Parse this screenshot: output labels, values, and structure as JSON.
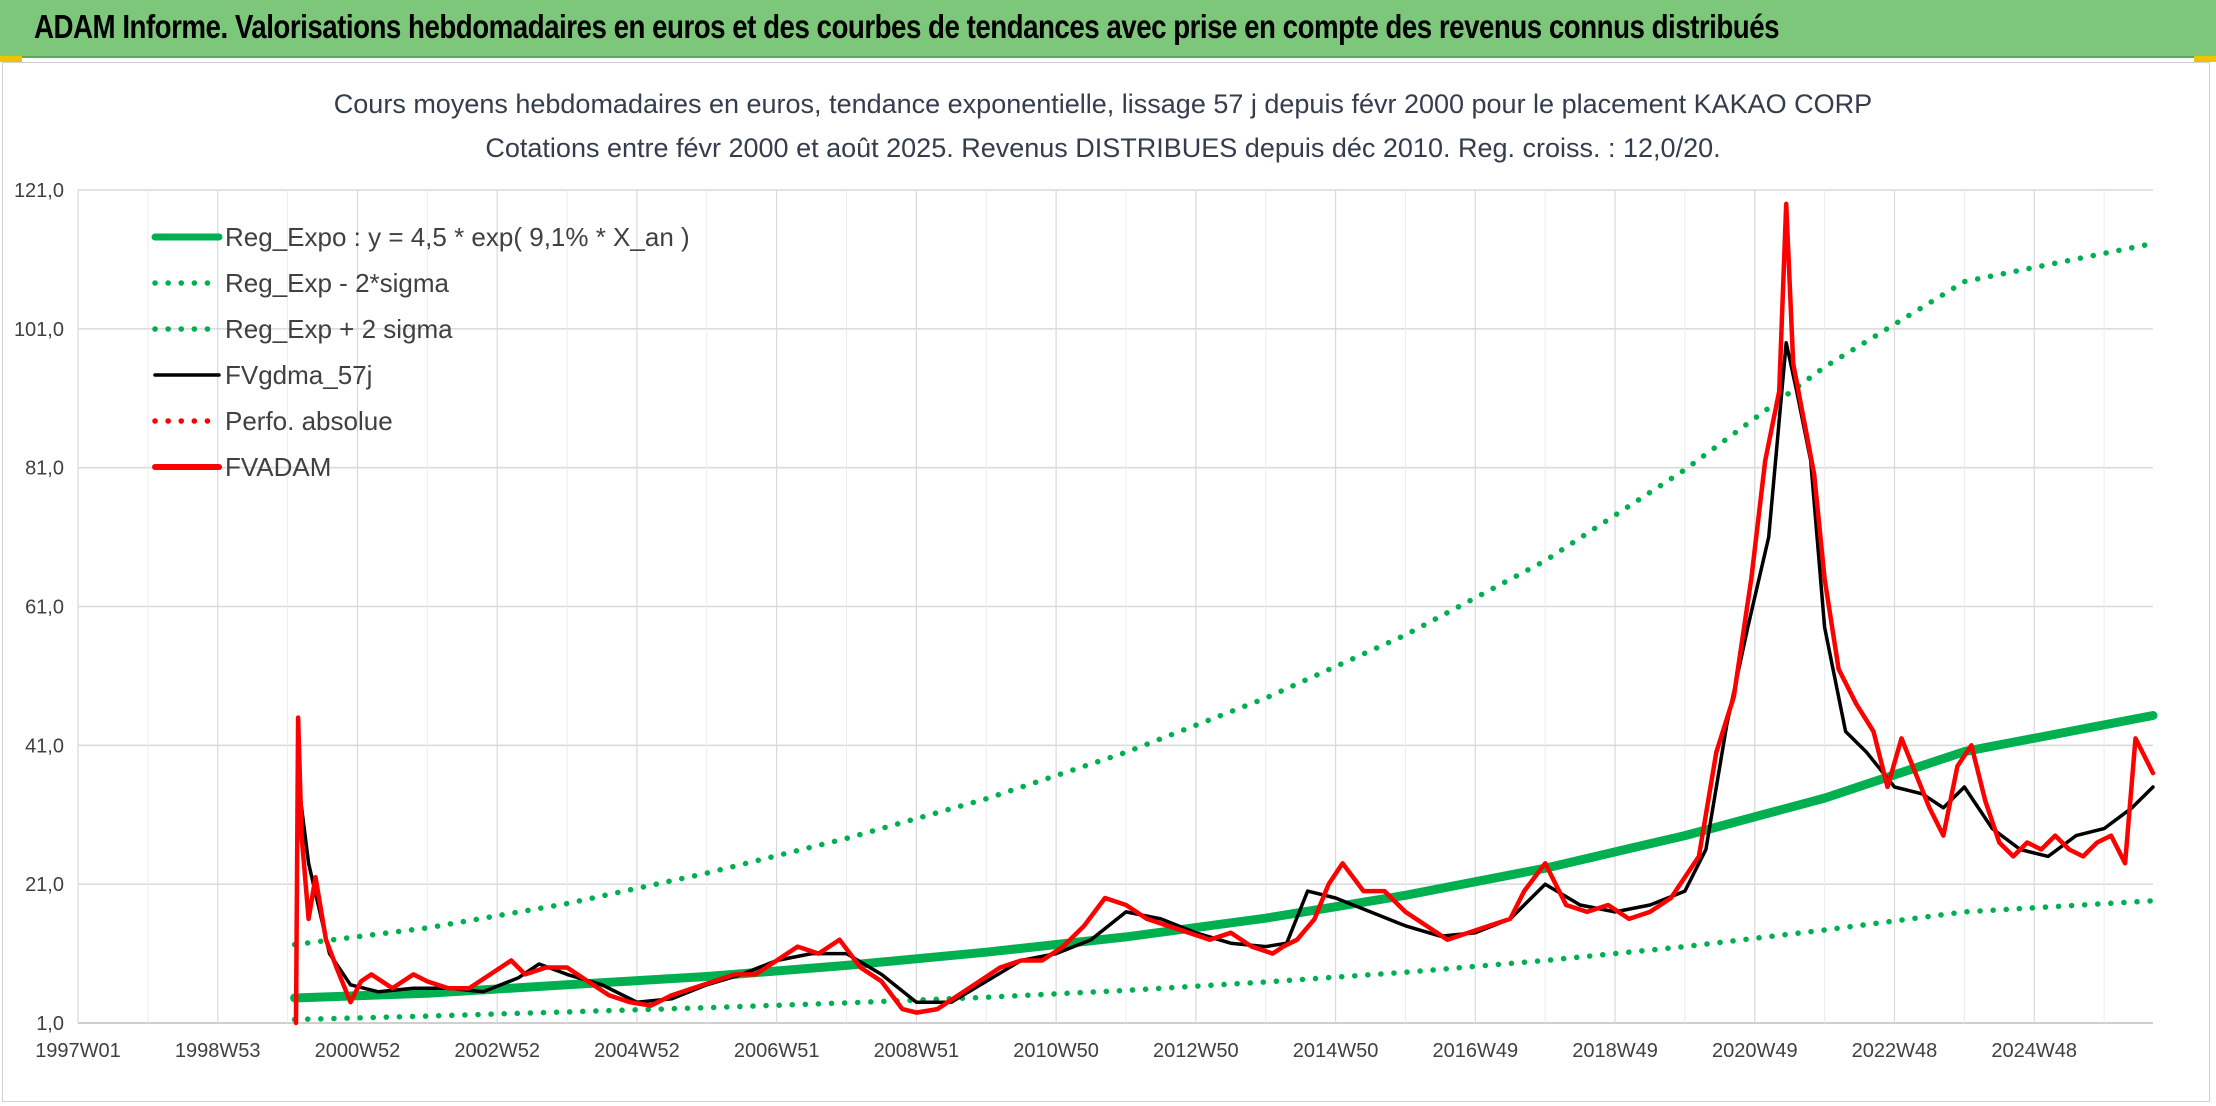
{
  "banner": {
    "title": "ADAM Informe. Valorisations hebdomadaires en euros et des courbes de tendances avec prise en compte des revenus connus distribués"
  },
  "colors": {
    "banner_bg": "#7dc77b",
    "trend_green": "#00b050",
    "price_red": "#ff0000",
    "smooth_black": "#000000",
    "grid": "#d9d9d9"
  },
  "chart_data": {
    "type": "line",
    "title": "Cours moyens hebdomadaires en euros, tendance exponentielle, lissage 57 j depuis févr 2000 pour le placement KAKAO CORP",
    "subtitle": "Cotations entre févr 2000 et août 2025. Revenus DISTRIBUES depuis déc 2010. Reg. croiss. : 12,0/20.",
    "xlabel": "",
    "ylabel": "",
    "x_tick_labels": [
      "1997W01",
      "1998W53",
      "2000W52",
      "2002W52",
      "2004W52",
      "2006W51",
      "2008W51",
      "2010W50",
      "2012W50",
      "2014W50",
      "2016W49",
      "2018W49",
      "2020W49",
      "2022W48",
      "2024W48"
    ],
    "x_tick_years": [
      1997.0,
      1999.0,
      2001.0,
      2003.0,
      2005.0,
      2007.0,
      2009.0,
      2011.0,
      2013.0,
      2015.0,
      2017.0,
      2019.0,
      2021.0,
      2023.0,
      2025.0
    ],
    "xlim": [
      1997.0,
      2026.7
    ],
    "y_tick_labels": [
      "1,0",
      "21,0",
      "41,0",
      "61,0",
      "81,0",
      "101,0",
      "121,0"
    ],
    "y_ticks": [
      1,
      21,
      41,
      61,
      81,
      101,
      121
    ],
    "ylim": [
      1,
      121
    ],
    "grid": "both",
    "legend_position": "top-left",
    "series": [
      {
        "name": "Reg_Expo : y = 4,5 * exp( 9,1% *  X_an )",
        "style": "solid-thick",
        "color": "#00b050",
        "x": [
          2000.1,
          2002,
          2004,
          2006,
          2008,
          2010,
          2012,
          2014,
          2016,
          2018,
          2020,
          2022,
          2024,
          2026.7
        ],
        "y": [
          4.6,
          5.3,
          6.5,
          7.7,
          9.3,
          11.2,
          13.4,
          16.1,
          19.4,
          23.3,
          28.0,
          33.4,
          40.1,
          45.3
        ]
      },
      {
        "name": "Reg_Exp - 2*sigma",
        "style": "dotted",
        "color": "#00b050",
        "x": [
          2000.1,
          2002,
          2004,
          2006,
          2008,
          2010,
          2012,
          2014,
          2016,
          2018,
          2020,
          2022,
          2024,
          2026.7
        ],
        "y": [
          1.5,
          2.0,
          2.6,
          3.2,
          3.9,
          4.7,
          5.7,
          6.9,
          8.3,
          10.0,
          12.0,
          14.4,
          17.0,
          18.6
        ]
      },
      {
        "name": "Reg_Exp + 2 sigma",
        "style": "dotted",
        "color": "#00b050",
        "x": [
          2000.1,
          2002,
          2004,
          2006,
          2008,
          2010,
          2012,
          2014,
          2016,
          2018,
          2020,
          2022,
          2024,
          2026.7
        ],
        "y": [
          12.3,
          14.7,
          18.2,
          22.6,
          27.6,
          33.3,
          40.0,
          47.8,
          56.9,
          67.6,
          80.7,
          95.5,
          107.8,
          113.3
        ]
      },
      {
        "name": "FVgdma_57j",
        "style": "solid",
        "color": "#000000",
        "x": [
          2000.15,
          2000.3,
          2000.6,
          2000.9,
          2001.3,
          2001.8,
          2002.3,
          2002.8,
          2003.3,
          2003.6,
          2004.0,
          2004.5,
          2005.0,
          2005.5,
          2006.0,
          2006.5,
          2007.0,
          2007.5,
          2008.0,
          2008.5,
          2009.0,
          2009.5,
          2010.0,
          2010.5,
          2011.0,
          2011.5,
          2012.0,
          2012.5,
          2013.0,
          2013.5,
          2014.0,
          2014.3,
          2014.6,
          2015.0,
          2015.5,
          2016.0,
          2016.5,
          2017.0,
          2017.5,
          2018.0,
          2018.5,
          2019.0,
          2019.5,
          2020.0,
          2020.3,
          2020.6,
          2020.9,
          2021.2,
          2021.45,
          2021.6,
          2021.8,
          2022.0,
          2022.3,
          2022.6,
          2023.0,
          2023.4,
          2023.7,
          2024.0,
          2024.4,
          2024.8,
          2025.2,
          2025.6,
          2026.0,
          2026.4,
          2026.7
        ],
        "y": [
          36,
          24,
          11,
          6.5,
          5.5,
          6,
          6,
          5.5,
          7.5,
          9.5,
          8,
          6.5,
          4,
          4.5,
          6.5,
          8,
          10,
          11,
          11,
          8,
          4,
          4,
          7,
          10,
          11,
          13,
          17,
          16,
          14,
          12.5,
          12,
          12.5,
          20,
          19,
          17,
          15,
          13.5,
          14,
          16,
          21,
          18,
          17,
          18,
          20,
          26,
          44,
          58,
          71,
          99,
          92,
          82,
          58,
          43,
          40,
          35,
          34,
          32,
          35,
          29,
          26,
          25,
          28,
          29,
          32,
          35
        ]
      },
      {
        "name": "Perfo. absolue",
        "style": "dotted",
        "color": "#ff0000",
        "x": [
          2000.15
        ],
        "y": [
          12.5
        ]
      },
      {
        "name": "FVADAM",
        "style": "solid-thick",
        "color": "#ff0000",
        "x": [
          2000.12,
          2000.15,
          2000.2,
          2000.3,
          2000.4,
          2000.55,
          2000.7,
          2000.9,
          2001.05,
          2001.2,
          2001.5,
          2001.8,
          2002.0,
          2002.3,
          2002.6,
          2002.9,
          2003.2,
          2003.4,
          2003.7,
          2004.0,
          2004.3,
          2004.6,
          2004.9,
          2005.2,
          2005.5,
          2005.8,
          2006.1,
          2006.4,
          2006.7,
          2007.0,
          2007.3,
          2007.6,
          2007.9,
          2008.2,
          2008.5,
          2008.8,
          2009.0,
          2009.3,
          2009.6,
          2009.9,
          2010.2,
          2010.5,
          2010.8,
          2011.1,
          2011.4,
          2011.7,
          2012.0,
          2012.3,
          2012.6,
          2012.9,
          2013.2,
          2013.5,
          2013.8,
          2014.1,
          2014.25,
          2014.45,
          2014.7,
          2014.9,
          2015.1,
          2015.4,
          2015.7,
          2016.0,
          2016.3,
          2016.6,
          2016.9,
          2017.2,
          2017.5,
          2017.7,
          2018.0,
          2018.3,
          2018.6,
          2018.9,
          2019.2,
          2019.5,
          2019.8,
          2020.0,
          2020.2,
          2020.45,
          2020.7,
          2020.95,
          2021.15,
          2021.35,
          2021.45,
          2021.55,
          2021.7,
          2021.85,
          2022.0,
          2022.2,
          2022.45,
          2022.7,
          2022.9,
          2023.1,
          2023.3,
          2023.5,
          2023.7,
          2023.9,
          2024.1,
          2024.3,
          2024.5,
          2024.7,
          2024.9,
          2025.1,
          2025.3,
          2025.5,
          2025.7,
          2025.9,
          2026.1,
          2026.3,
          2026.45,
          2026.55,
          2026.7
        ],
        "y": [
          1,
          45,
          28,
          16,
          22,
          13,
          9,
          4,
          7,
          8,
          6,
          8,
          7,
          6,
          6,
          8,
          10,
          8,
          9,
          9,
          7,
          5,
          4,
          3.5,
          5,
          6,
          7,
          8,
          8,
          10,
          12,
          11,
          13,
          9,
          7,
          3,
          2.5,
          3,
          5,
          7,
          9,
          10,
          10,
          12,
          15,
          19,
          18,
          16,
          15,
          14,
          13,
          14,
          12,
          11,
          12,
          13,
          16,
          21,
          24,
          20,
          20,
          17,
          15,
          13,
          14,
          15,
          16,
          20,
          24,
          18,
          17,
          18,
          16,
          17,
          19,
          22,
          25,
          40,
          48,
          65,
          82,
          92,
          119,
          96,
          88,
          80,
          65,
          52,
          47,
          43,
          35,
          42,
          37,
          32,
          28,
          38,
          41,
          33,
          27,
          25,
          27,
          26,
          28,
          26,
          25,
          27,
          28,
          24,
          42,
          40,
          37
        ]
      }
    ]
  },
  "legend": [
    {
      "label": "Reg_Expo : y = 4,5 * exp( 9,1% *  X_an )",
      "color": "#00b050",
      "style": "solid-thick"
    },
    {
      "label": "Reg_Exp - 2*sigma",
      "color": "#00b050",
      "style": "dotted"
    },
    {
      "label": "Reg_Exp + 2 sigma",
      "color": "#00b050",
      "style": "dotted"
    },
    {
      "label": "FVgdma_57j",
      "color": "#000000",
      "style": "solid"
    },
    {
      "label": "Perfo. absolue",
      "color": "#ff0000",
      "style": "dotted"
    },
    {
      "label": "FVADAM",
      "color": "#ff0000",
      "style": "solid-thick"
    }
  ]
}
